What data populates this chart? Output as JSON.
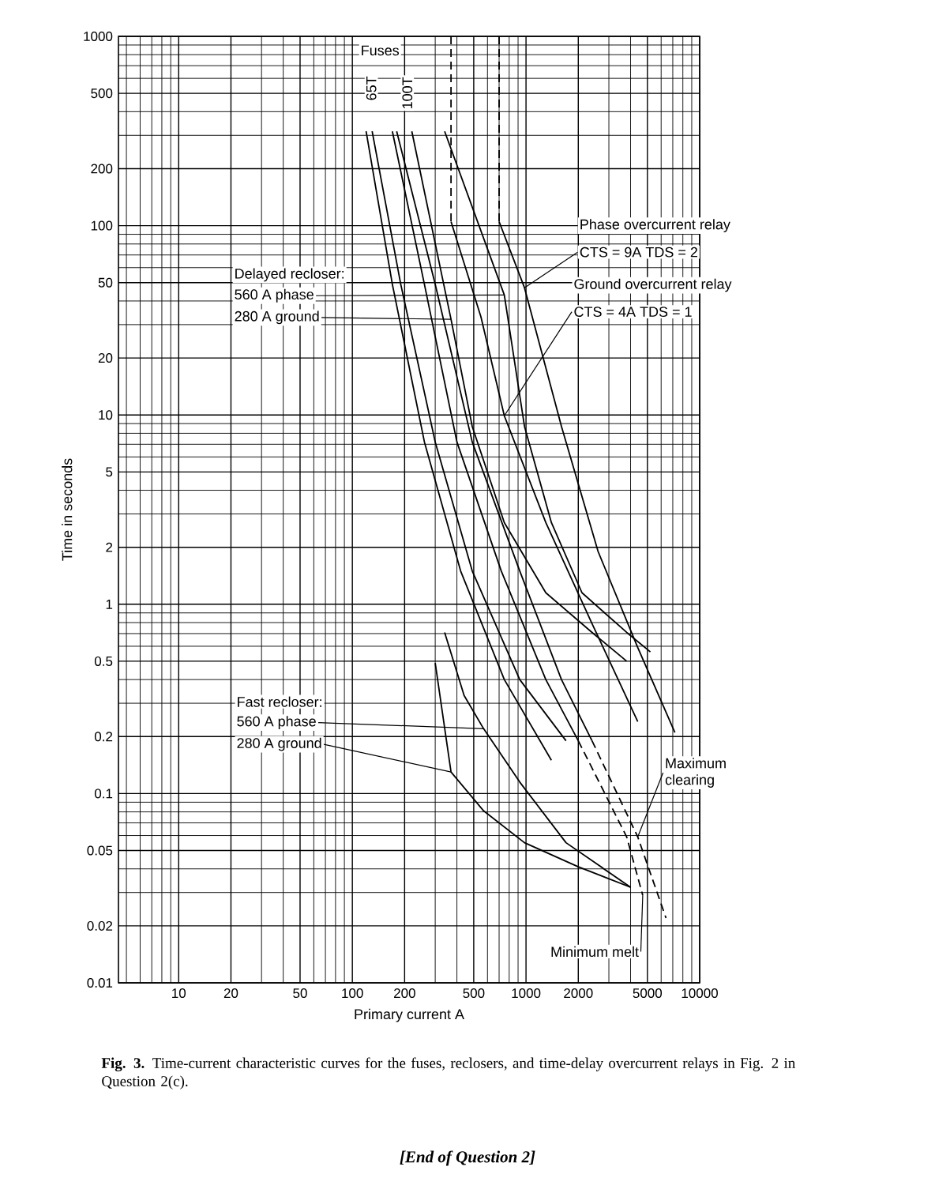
{
  "chart_data": {
    "type": "line",
    "xlabel": "Primary current A",
    "ylabel": "Time in seconds",
    "log": "xy",
    "grid": true,
    "marker": "none",
    "line_style": "solid",
    "xlim": [
      4.5,
      10000
    ],
    "ylim": [
      0.01,
      1000
    ],
    "xticks": [
      10,
      20,
      50,
      100,
      200,
      500,
      1000,
      2000,
      5000,
      10000
    ],
    "yticks": [
      0.01,
      0.02,
      0.05,
      0.1,
      0.2,
      0.5,
      1,
      2,
      5,
      10,
      20,
      50,
      100,
      200,
      500,
      1000
    ],
    "series": [
      {
        "color": "#000000",
        "x": [
          120,
          170,
          260,
          420,
          750,
          1400
        ],
        "values": [
          315,
          49,
          7.2,
          1.5,
          0.4,
          0.15
        ]
      },
      {
        "color": "#000000",
        "x": [
          130,
          190,
          300,
          490,
          920,
          1700
        ],
        "values": [
          315,
          49,
          7.2,
          1.5,
          0.4,
          0.19
        ]
      },
      {
        "color": "#000000",
        "x": [
          170,
          260,
          400,
          720,
          1300,
          2000
        ],
        "values": [
          315,
          49,
          7.2,
          1.5,
          0.4,
          0.19
        ]
      },
      {
        "color": "#000000",
        "line_style": "dashed",
        "x": [
          2000,
          3800,
          4700
        ],
        "values": [
          0.19,
          0.059,
          0.029
        ]
      },
      {
        "color": "#000000",
        "x": [
          180,
          300,
          490,
          920,
          1600,
          2400
        ],
        "values": [
          315,
          49,
          7.2,
          1.5,
          0.4,
          0.19
        ]
      },
      {
        "color": "#000000",
        "line_style": "dashed",
        "x": [
          2400,
          4400,
          6400
        ],
        "values": [
          0.19,
          0.059,
          0.022
        ]
      },
      {
        "color": "#000000",
        "line_style": "dashed",
        "x": [
          700,
          700
        ],
        "values": [
          1000,
          105
        ]
      },
      {
        "color": "#000000",
        "x": [
          700,
          980,
          1600,
          2600,
          4400,
          7200
        ],
        "values": [
          105,
          47,
          8.7,
          1.9,
          0.59,
          0.21
        ]
      },
      {
        "color": "#000000",
        "line_style": "dashed",
        "x": [
          370,
          370
        ],
        "values": [
          1000,
          105
        ]
      },
      {
        "color": "#000000",
        "x": [
          370,
          550,
          750,
          1300,
          2400,
          4400
        ],
        "values": [
          105,
          33,
          9.9,
          2.7,
          0.79,
          0.24
        ]
      },
      {
        "color": "#000000",
        "x": [
          220,
          370,
          490,
          750,
          1300,
          2400,
          3800
        ],
        "values": [
          315,
          32,
          8.7,
          2.7,
          1.15,
          0.71,
          0.5
        ]
      },
      {
        "color": "#000000",
        "x": [
          340,
          750,
          980,
          1400,
          2100,
          3800,
          5200
        ],
        "values": [
          315,
          43,
          8.7,
          2.7,
          1.15,
          0.71,
          0.56
        ]
      },
      {
        "color": "#000000",
        "x": [
          300,
          370,
          570,
          980,
          2000,
          4000
        ],
        "values": [
          0.49,
          0.13,
          0.081,
          0.055,
          0.041,
          0.032
        ]
      },
      {
        "color": "#000000",
        "x": [
          340,
          440,
          570,
          920,
          1700,
          4000
        ],
        "values": [
          0.71,
          0.33,
          0.22,
          0.115,
          0.055,
          0.032
        ]
      }
    ],
    "annotations": [
      "Fuses",
      "65T",
      "100T",
      "Phase overcurrent relay",
      {
        "text": "CTS = 9A   TDS = 2",
        "x": 980,
        "y": 47
      },
      "Ground overcurrent relay",
      {
        "text": "CTS = 4A   TDS = 1",
        "x": 750,
        "y": 9.9
      },
      "Delayed recloser:",
      {
        "text": "560 A phase",
        "x": 750,
        "y": 43
      },
      {
        "text": "280 A ground",
        "x": 370,
        "y": 32
      },
      "Fast recloser:",
      {
        "text": "560 A phase",
        "x": 570,
        "y": 0.22
      },
      {
        "text": "280 A ground",
        "x": 370,
        "y": 0.13
      },
      {
        "text": "Maximum clearing",
        "x": 4400,
        "y": 0.059
      },
      {
        "text": "Minimum melt",
        "x": 4700,
        "y": 0.029
      },
      "**Fig. 3.** Time-current characteristic curves for the fuses, reclosers, and time-delay overcurrent relays in Fig. 2 in Question 2(c).",
      "[End of Question 2]"
    ]
  }
}
